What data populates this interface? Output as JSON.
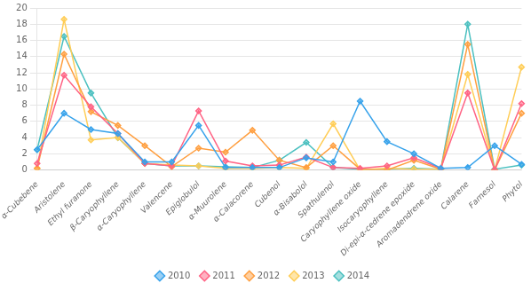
{
  "chart_data": {
    "type": "line",
    "categories": [
      "α-Cubebene",
      "Aristolene",
      "Ethyl furanone",
      "β-Caryophyllene",
      "α-Caryophyllene",
      "Valencene",
      "Epiglobulol",
      "α-Muurolene",
      "α-Calacorene",
      "Cubenol",
      "α-Bisabolol",
      "Spathulenol",
      "Caryophyllene oxide",
      "Isocaryophyllene",
      "Di-epi-α-cedrene epoxide",
      "Aromadendrene oxide",
      "Calarene",
      "Farnesol",
      "Phytol"
    ],
    "series": [
      {
        "name": "2010",
        "values": [
          2.5,
          7.0,
          5.0,
          4.5,
          1.0,
          1.0,
          5.5,
          0.3,
          0.3,
          0.3,
          1.5,
          1.0,
          8.5,
          3.5,
          2.0,
          0.2,
          0.3,
          3.0,
          0.7
        ]
      },
      {
        "name": "2011",
        "values": [
          0.8,
          11.7,
          7.8,
          4.5,
          0.8,
          0.5,
          7.3,
          1.1,
          0.5,
          0.6,
          1.6,
          0.3,
          0.2,
          0.5,
          1.5,
          0.2,
          9.5,
          0.0,
          8.2
        ]
      },
      {
        "name": "2012",
        "values": [
          0.2,
          14.3,
          7.2,
          5.5,
          3.0,
          0.4,
          2.7,
          2.2,
          4.9,
          1.2,
          0.3,
          3.0,
          0.1,
          0.0,
          1.2,
          0.1,
          15.5,
          0.0,
          7.0
        ]
      },
      {
        "name": "2013",
        "values": [
          0.2,
          18.6,
          3.7,
          4.0,
          0.8,
          0.6,
          0.5,
          0.2,
          0.2,
          0.3,
          0.2,
          5.7,
          0.0,
          0.2,
          0.1,
          0.1,
          11.8,
          0.0,
          12.7
        ]
      },
      {
        "name": "2014",
        "values": [
          2.5,
          16.5,
          9.5,
          4.0,
          0.8,
          0.5,
          0.5,
          0.4,
          0.3,
          1.2,
          3.4,
          0.3,
          0.1,
          0.1,
          0.2,
          0.1,
          18.0,
          0.1,
          0.6
        ]
      }
    ],
    "ylim": [
      0,
      20
    ],
    "yticks": [
      0,
      2,
      4,
      6,
      8,
      10,
      12,
      14,
      16,
      18,
      20
    ],
    "grid": true,
    "legend": "bottom",
    "marker": "diamond"
  }
}
